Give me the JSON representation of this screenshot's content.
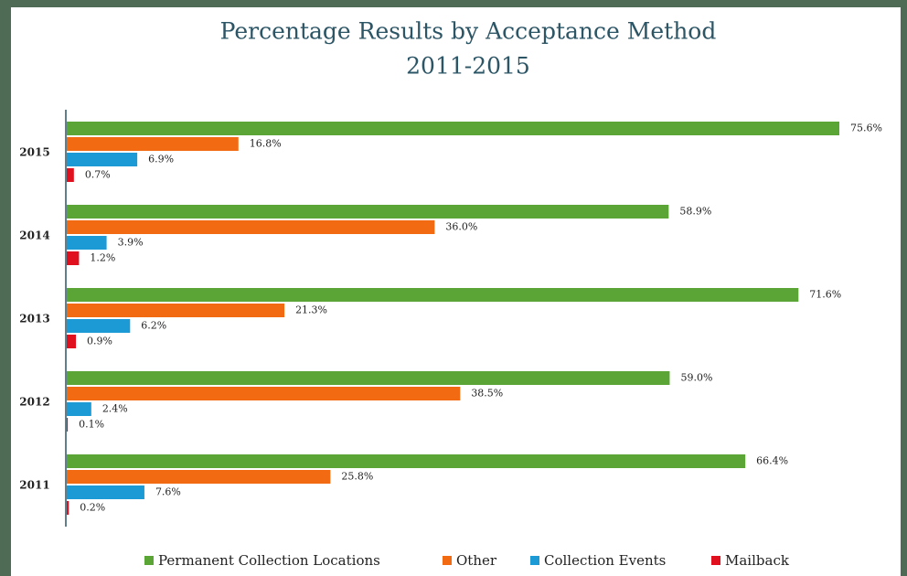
{
  "chart_data": {
    "type": "hbar",
    "title": "Percentage Results by Acceptance Method",
    "subtitle": "2011-2015",
    "categories": [
      "2015",
      "2014",
      "2013",
      "2012",
      "2011"
    ],
    "series": [
      {
        "name": "Permanent Collection Locations",
        "color": "#5ba536",
        "values": [
          75.6,
          58.9,
          71.6,
          59.0,
          66.4
        ],
        "value_labels": [
          "75.6%",
          "58.9%",
          "71.6%",
          "59.0%",
          "66.4%"
        ]
      },
      {
        "name": "Other",
        "color": "#f26a12",
        "values": [
          16.8,
          36.0,
          21.3,
          38.5,
          25.8
        ],
        "value_labels": [
          "16.8%",
          "36.0%",
          "21.3%",
          "38.5%",
          "25.8%"
        ]
      },
      {
        "name": "Collection Events",
        "color": "#1c9ad6",
        "values": [
          6.9,
          3.9,
          6.2,
          2.4,
          7.6
        ],
        "value_labels": [
          "6.9%",
          "3.9%",
          "6.2%",
          "2.4%",
          "7.6%"
        ]
      },
      {
        "name": "Mailback",
        "color": "#e0101e",
        "values": [
          0.7,
          1.2,
          0.9,
          0.1,
          0.2
        ],
        "value_labels": [
          "0.7%",
          "1.2%",
          "0.9%",
          "0.1%",
          "0.2%"
        ]
      }
    ],
    "legend": "bottom"
  }
}
